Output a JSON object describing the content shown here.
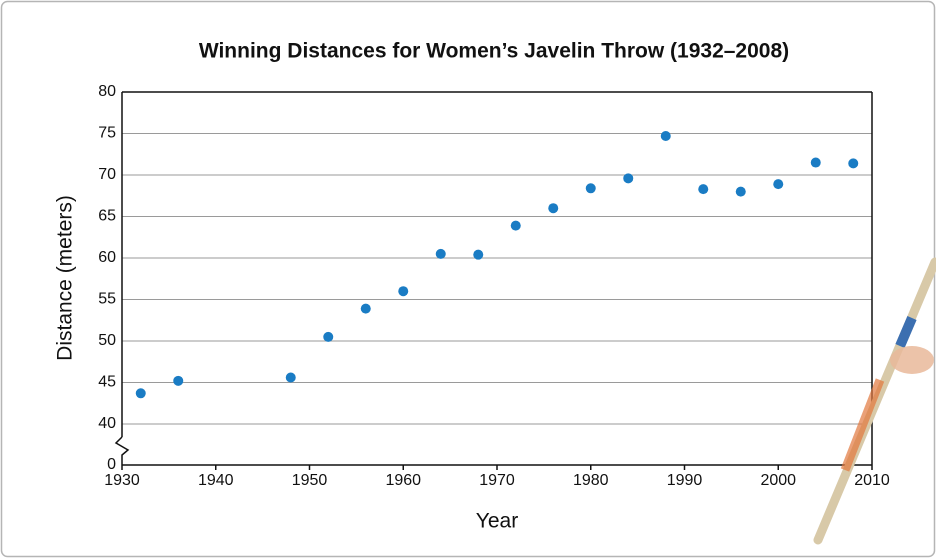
{
  "chart_data": {
    "type": "scatter",
    "title": "Winning Distances for Women’s Javelin Throw (1932–2008)",
    "x_label": "Year",
    "y_label": "Distance (meters)",
    "x": [
      1932,
      1936,
      1948,
      1952,
      1956,
      1960,
      1964,
      1968,
      1972,
      1976,
      1980,
      1984,
      1988,
      1992,
      1996,
      2000,
      2004,
      2008
    ],
    "values": [
      43.7,
      45.2,
      45.6,
      50.5,
      53.9,
      56.0,
      60.5,
      60.4,
      63.9,
      66.0,
      68.4,
      69.6,
      74.7,
      68.3,
      68.0,
      68.9,
      71.5,
      71.4
    ],
    "color": "#1a7cc4",
    "xlim": [
      1930,
      2010
    ],
    "xticks": [
      1930,
      1940,
      1950,
      1960,
      1970,
      1980,
      1990,
      2000,
      2010
    ],
    "ylim": [
      0,
      80
    ],
    "yticks": [
      0,
      40,
      45,
      50,
      55,
      60,
      65,
      70,
      75,
      80
    ],
    "y_break": [
      0,
      40
    ],
    "grid": true
  }
}
